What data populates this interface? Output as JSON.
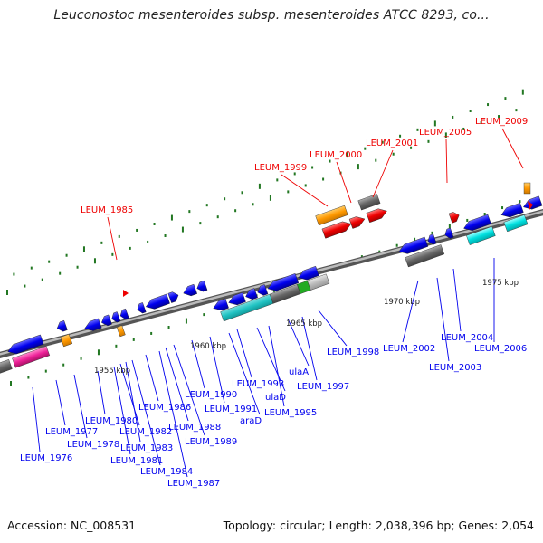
{
  "title": "Leuconostoc mesenteroides subsp. mesenteroides ATCC 8293, co...",
  "footer": {
    "accession": "Accession: NC_008531",
    "topology": "Topology: circular; Length: 2,038,396 bp; Genes: 2,054"
  },
  "scale_labels": [
    "1955 kbp",
    "1960 kbp",
    "1965 kbp",
    "1970 kbp",
    "1975 kbp"
  ],
  "blue_labels": [
    "LEUM_1976",
    "LEUM_1977",
    "LEUM_1978",
    "LEUM_1980",
    "LEUM_1981",
    "LEUM_1982",
    "LEUM_1983",
    "LEUM_1984",
    "LEUM_1986",
    "LEUM_1987",
    "LEUM_1988",
    "LEUM_1989",
    "LEUM_1990",
    "LEUM_1991",
    "araD",
    "LEUM_1993",
    "ulaD",
    "LEUM_1995",
    "ulaA",
    "LEUM_1997",
    "LEUM_1998",
    "LEUM_2002",
    "LEUM_2003",
    "LEUM_2004",
    "LEUM_2006"
  ],
  "red_labels": [
    "LEUM_1985",
    "LEUM_1999",
    "LEUM_2000",
    "LEUM_2001",
    "LEUM_2005",
    "LEUM_2009"
  ],
  "colors": {
    "blue": "#0000ee",
    "red": "#ee0000",
    "orange": "#ff9900",
    "gray": "#666666",
    "cyan": "#00e0e0",
    "teal": "#22c4c4",
    "magenta": "#ee2299",
    "green": "#22aa22",
    "lightgray": "#bbbbbb",
    "tick": "#227722",
    "backbone": "#888888"
  }
}
